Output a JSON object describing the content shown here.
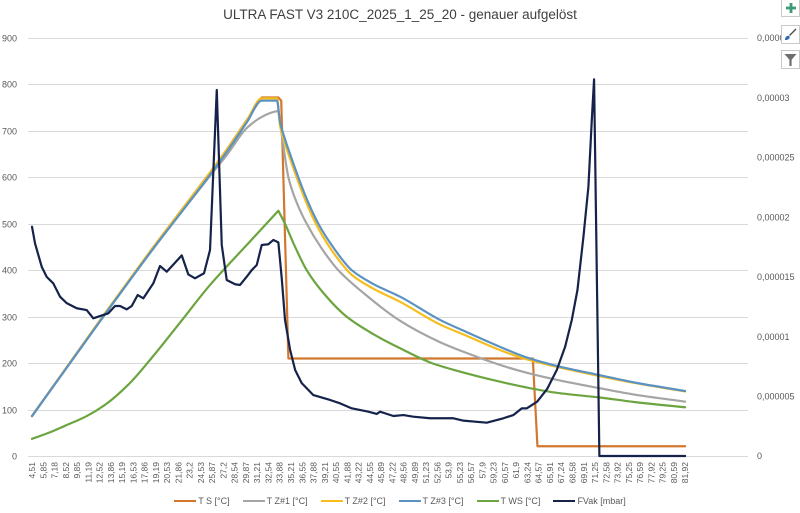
{
  "side_buttons": [
    {
      "icon": "plus-icon"
    },
    {
      "icon": "brush-icon"
    },
    {
      "icon": "funnel-icon"
    }
  ],
  "chart_data": {
    "type": "line",
    "title": "ULTRA FAST V3 210C_2025_1_25_20 - genauer aufgelöst",
    "xlabel": "",
    "ylabel": "",
    "y2label": "",
    "grid": true,
    "legend": "bottom",
    "x_range": [
      4.51,
      81.92
    ],
    "x_tick_labels": [
      "4,51",
      "5,85",
      "7,18",
      "8,52",
      "9,85",
      "11,19",
      "12,52",
      "13,86",
      "15,19",
      "16,53",
      "17,86",
      "19,19",
      "20,53",
      "21,86",
      "23,2",
      "24,53",
      "25,87",
      "27,2",
      "28,54",
      "29,87",
      "31,21",
      "32,54",
      "33,88",
      "35,21",
      "36,55",
      "37,88",
      "39,21",
      "40,55",
      "41,88",
      "43,22",
      "44,55",
      "45,89",
      "47,22",
      "48,56",
      "49,89",
      "51,23",
      "52,56",
      "53,9",
      "55,23",
      "56,57",
      "57,9",
      "59,23",
      "60,57",
      "61,9",
      "63,24",
      "64,57",
      "65,91",
      "67,24",
      "68,58",
      "69,91",
      "71,25",
      "72,58",
      "73,92",
      "75,25",
      "76,59",
      "77,92",
      "79,25",
      "80,59",
      "81,92"
    ],
    "ylim": [
      0,
      900
    ],
    "y_ticks": [
      0,
      100,
      200,
      300,
      400,
      500,
      600,
      700,
      800,
      900
    ],
    "y_tick_labels": [
      "0",
      "100",
      "200",
      "300",
      "400",
      "500",
      "600",
      "700",
      "800",
      "900"
    ],
    "y2lim": [
      0,
      3.5e-05
    ],
    "y2_ticks": [
      0,
      5e-06,
      1e-05,
      1.5e-05,
      2e-05,
      2.5e-05,
      3e-05,
      3.5e-05
    ],
    "y2_tick_labels": [
      "0",
      "0,000005",
      "0,00001",
      "0,000015",
      "0,00002",
      "0,000025",
      "0,00003",
      "0,000035"
    ],
    "series": [
      {
        "name": "T S [°C]",
        "axis": "primary",
        "color": "#D2772E",
        "x": [
          4.51,
          8.42,
          13.16,
          18.82,
          22,
          25.6,
          27.6,
          29.96,
          31.74,
          33.71,
          34.05,
          34.9,
          63.87,
          64.42,
          81.92
        ],
        "y": [
          86,
          186,
          307,
          448,
          524,
          610,
          660,
          723,
          772,
          772,
          765,
          210,
          210,
          21,
          21
        ]
      },
      {
        "name": "T Z#1 [°C]",
        "axis": "primary",
        "color": "#A5A5A5",
        "x": [
          4.51,
          8.42,
          13.16,
          18.82,
          22,
          25.6,
          27.6,
          29.96,
          31.74,
          33.0,
          33.71,
          34.3,
          34.9,
          35.9,
          37.07,
          38.8,
          40.82,
          44,
          48.14,
          52.88,
          56,
          59.99,
          63,
          66.71,
          71.8,
          76,
          81.92
        ],
        "y": [
          86,
          185,
          305,
          445,
          520,
          603,
          648,
          706,
          730,
          740,
          743,
          668,
          600,
          545,
          500,
          448,
          400,
          348,
          291,
          245,
          222,
          196,
          180,
          164,
          146,
          132,
          117
        ]
      },
      {
        "name": "T Z#2 [°C]",
        "axis": "primary",
        "color": "#F5BE1E",
        "x": [
          4.51,
          8.42,
          13.16,
          18.82,
          22,
          25.6,
          27.6,
          29.96,
          31.74,
          33.55,
          33.9,
          34.5,
          35.1,
          36.08,
          37.2,
          38.45,
          40.3,
          42.41,
          45,
          48.14,
          52.88,
          56,
          59.99,
          63,
          66.71,
          71.8,
          76,
          81.92
        ],
        "y": [
          86,
          186,
          307,
          448,
          524,
          610,
          660,
          722,
          770,
          770,
          712,
          672,
          640,
          590,
          538,
          490,
          436,
          390,
          360,
          332,
          283,
          259,
          228,
          209,
          192,
          172,
          157,
          139
        ]
      },
      {
        "name": "T Z#3 [°C]",
        "axis": "primary",
        "color": "#5B92C2",
        "x": [
          4.51,
          8.42,
          13.16,
          18.82,
          22,
          25.6,
          27.6,
          29.96,
          31.74,
          33.55,
          33.9,
          34.5,
          35.1,
          36.08,
          37.2,
          38.45,
          40.3,
          42.41,
          45,
          48.14,
          52.88,
          56,
          59.99,
          63,
          66.71,
          71.8,
          76,
          81.92
        ],
        "y": [
          86,
          185,
          305,
          445,
          520,
          605,
          655,
          718,
          765,
          765,
          720,
          682,
          650,
          600,
          548,
          500,
          447,
          400,
          370,
          343,
          293,
          267,
          235,
          213,
          194,
          174,
          158,
          140
        ]
      },
      {
        "name": "T WS [°C]",
        "axis": "primary",
        "color": "#6CA53F",
        "x": [
          4.51,
          6.5,
          8.42,
          11,
          13.16,
          16,
          18.82,
          22,
          25.6,
          28,
          30.4,
          33.71,
          34.5,
          35.5,
          37.07,
          39,
          41.8,
          45,
          48.14,
          51.9,
          55,
          59.99,
          63,
          66.71,
          71.8,
          76,
          81.92
        ],
        "y": [
          37,
          50,
          65,
          86,
          110,
          155,
          214,
          286,
          368,
          416,
          463,
          528,
          500,
          458,
          400,
          352,
          300,
          262,
          232,
          200,
          183,
          160,
          148,
          136,
          126,
          116,
          105
        ]
      },
      {
        "name": "FVak [mbar]",
        "axis": "secondary",
        "color": "#15234A",
        "x": [
          4.51,
          4.87,
          5.66,
          6.25,
          7.03,
          7.83,
          8.62,
          9.81,
          10.99,
          11.78,
          12.57,
          13.56,
          14.35,
          14.94,
          15.74,
          16.33,
          17.04,
          17.7,
          18.89,
          19.68,
          20.48,
          22.26,
          23.04,
          23.83,
          24.9,
          25.61,
          26.41,
          27.0,
          27.59,
          28.58,
          29.17,
          29.96,
          30.56,
          31.15,
          31.74,
          32.52,
          33.12,
          33.71,
          34.11,
          34.5,
          35.1,
          35.7,
          36.48,
          37.86,
          39.84,
          41.02,
          42.41,
          44.38,
          45.37,
          45.77,
          47.34,
          48.53,
          49.71,
          51.69,
          54.46,
          55.64,
          58.41,
          60.38,
          61.57,
          62.56,
          63.16,
          64.38,
          65.56,
          66.71,
          67.7,
          68.49,
          69.16,
          69.87,
          70.46,
          70.86,
          71.13,
          71.76,
          81.92
        ],
        "y": [
          1.92e-05,
          1.78e-05,
          1.585e-05,
          1.5e-05,
          1.446e-05,
          1.334e-05,
          1.28e-05,
          1.237e-05,
          1.222e-05,
          1.153e-05,
          1.172e-05,
          1.195e-05,
          1.256e-05,
          1.256e-05,
          1.228e-05,
          1.256e-05,
          1.348e-05,
          1.32e-05,
          1.446e-05,
          1.591e-05,
          1.543e-05,
          1.68e-05,
          1.52e-05,
          1.488e-05,
          1.53e-05,
          1.725e-05,
          3.065e-05,
          1.767e-05,
          1.474e-05,
          1.438e-05,
          1.432e-05,
          1.501e-05,
          1.557e-05,
          1.599e-05,
          1.767e-05,
          1.773e-05,
          1.809e-05,
          1.789e-05,
          1.488e-05,
          1.139e-05,
          8.9e-06,
          7.2e-06,
          6.1e-06,
          5.1e-06,
          4.69e-06,
          4.41e-06,
          3.99e-06,
          3.71e-06,
          3.52e-06,
          3.71e-06,
          3.35e-06,
          3.43e-06,
          3.29e-06,
          3.16e-06,
          3.16e-06,
          2.96e-06,
          2.79e-06,
          3.16e-06,
          3.43e-06,
          3.99e-06,
          3.99e-06,
          4.55e-06,
          5.6e-06,
          7.2e-06,
          9.15e-06,
          1.139e-05,
          1.39e-05,
          1.836e-05,
          2.255e-05,
          2.813e-05,
          3.154e-05,
          0,
          0
        ]
      }
    ]
  }
}
